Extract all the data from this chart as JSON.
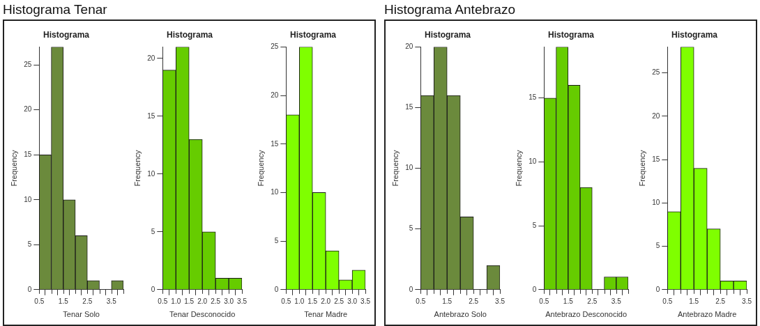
{
  "chart_data": [
    {
      "type": "histogram",
      "subtitle": "Histograma Tenar",
      "title": "Histograma",
      "xlabel": "Tenar Solo",
      "ylabel": "Frequency",
      "color": "#6b8a3c",
      "bins": [
        0.5,
        1.0,
        1.5,
        2.0,
        2.5,
        3.0,
        3.5,
        4.0
      ],
      "values": [
        15,
        27,
        10,
        6,
        1,
        0,
        1
      ],
      "xlim": [
        0.5,
        4.0
      ],
      "ylim": [
        0,
        27
      ],
      "xticks": [
        {
          "value": 0.5,
          "label": "0.5"
        },
        {
          "value": 1.0,
          "label": null
        },
        {
          "value": 1.5,
          "label": "1.5"
        },
        {
          "value": 2.0,
          "label": null
        },
        {
          "value": 2.5,
          "label": "2.5"
        },
        {
          "value": 3.0,
          "label": null
        },
        {
          "value": 3.5,
          "label": "3.5"
        },
        {
          "value": 4.0,
          "label": null
        }
      ],
      "yticks": [
        0,
        5,
        10,
        15,
        20,
        25
      ]
    },
    {
      "type": "histogram",
      "title": "Histograma",
      "xlabel": "Tenar Desconocido",
      "ylabel": "Frequency",
      "color": "#66cc00",
      "bins": [
        0.5,
        1.0,
        1.5,
        2.0,
        2.5,
        3.0,
        3.5
      ],
      "values": [
        19,
        21,
        13,
        5,
        1,
        1
      ],
      "xlim": [
        0.5,
        3.5
      ],
      "ylim": [
        0,
        21
      ],
      "xticks": [
        {
          "value": 0.5,
          "label": "0.5"
        },
        {
          "value": 1.0,
          "label": "1.0"
        },
        {
          "value": 1.5,
          "label": "1.5"
        },
        {
          "value": 2.0,
          "label": "2.0"
        },
        {
          "value": 2.5,
          "label": "2.5"
        },
        {
          "value": 3.0,
          "label": "3.0"
        },
        {
          "value": 3.5,
          "label": "3.5"
        }
      ],
      "yticks": [
        0,
        5,
        10,
        15,
        20
      ]
    },
    {
      "type": "histogram",
      "title": "Histograma",
      "xlabel": "Tenar Madre",
      "ylabel": "Frequency",
      "color": "#7fff00",
      "bins": [
        0.5,
        1.0,
        1.5,
        2.0,
        2.5,
        3.0,
        3.5
      ],
      "values": [
        18,
        25,
        10,
        4,
        1,
        2
      ],
      "xlim": [
        0.5,
        3.5
      ],
      "ylim": [
        0,
        25
      ],
      "xticks": [
        {
          "value": 0.5,
          "label": "0.5"
        },
        {
          "value": 1.0,
          "label": "1.0"
        },
        {
          "value": 1.5,
          "label": "1.5"
        },
        {
          "value": 2.0,
          "label": "2.0"
        },
        {
          "value": 2.5,
          "label": "2.5"
        },
        {
          "value": 3.0,
          "label": "3.0"
        },
        {
          "value": 3.5,
          "label": "3.5"
        }
      ],
      "yticks": [
        0,
        5,
        10,
        15,
        20,
        25
      ]
    },
    {
      "type": "histogram",
      "subtitle": "Histograma Antebrazo",
      "title": "Histograma",
      "xlabel": "Antebrazo Solo",
      "ylabel": "Frequency",
      "color": "#6b8a3c",
      "bins": [
        0.5,
        1.0,
        1.5,
        2.0,
        2.5,
        3.0,
        3.5
      ],
      "values": [
        16,
        20,
        16,
        6,
        0,
        2
      ],
      "xlim": [
        0.5,
        3.5
      ],
      "ylim": [
        0,
        20
      ],
      "xticks": [
        {
          "value": 0.5,
          "label": "0.5"
        },
        {
          "value": 1.0,
          "label": null
        },
        {
          "value": 1.5,
          "label": "1.5"
        },
        {
          "value": 2.0,
          "label": null
        },
        {
          "value": 2.5,
          "label": "2.5"
        },
        {
          "value": 3.0,
          "label": null
        },
        {
          "value": 3.5,
          "label": "3.5"
        }
      ],
      "yticks": [
        0,
        5,
        10,
        15,
        20
      ]
    },
    {
      "type": "histogram",
      "title": "Histograma",
      "xlabel": "Antebrazo Desconocido",
      "ylabel": "Frequency",
      "color": "#66cc00",
      "bins": [
        0.5,
        1.0,
        1.5,
        2.0,
        2.5,
        3.0,
        3.5,
        4.0
      ],
      "values": [
        15,
        19,
        16,
        8,
        0,
        1,
        1
      ],
      "xlim": [
        0.5,
        4.0
      ],
      "ylim": [
        0,
        19
      ],
      "xticks": [
        {
          "value": 0.5,
          "label": "0.5"
        },
        {
          "value": 1.0,
          "label": null
        },
        {
          "value": 1.5,
          "label": "1.5"
        },
        {
          "value": 2.0,
          "label": null
        },
        {
          "value": 2.5,
          "label": "2.5"
        },
        {
          "value": 3.0,
          "label": null
        },
        {
          "value": 3.5,
          "label": "3.5"
        },
        {
          "value": 4.0,
          "label": null
        }
      ],
      "yticks": [
        0,
        5,
        10,
        15
      ]
    },
    {
      "type": "histogram",
      "title": "Histograma",
      "xlabel": "Antebrazo Madre",
      "ylabel": "Frequency",
      "color": "#7fff00",
      "bins": [
        0.5,
        1.0,
        1.5,
        2.0,
        2.5,
        3.0,
        3.5
      ],
      "values": [
        9,
        28,
        14,
        7,
        1,
        1
      ],
      "xlim": [
        0.5,
        3.5
      ],
      "ylim": [
        0,
        28
      ],
      "xticks": [
        {
          "value": 0.5,
          "label": "0.5"
        },
        {
          "value": 1.0,
          "label": null
        },
        {
          "value": 1.5,
          "label": "1.5"
        },
        {
          "value": 2.0,
          "label": null
        },
        {
          "value": 2.5,
          "label": "2.5"
        },
        {
          "value": 3.0,
          "label": null
        },
        {
          "value": 3.5,
          "label": "3.5"
        }
      ],
      "yticks": [
        0,
        5,
        10,
        15,
        20,
        25
      ]
    }
  ]
}
